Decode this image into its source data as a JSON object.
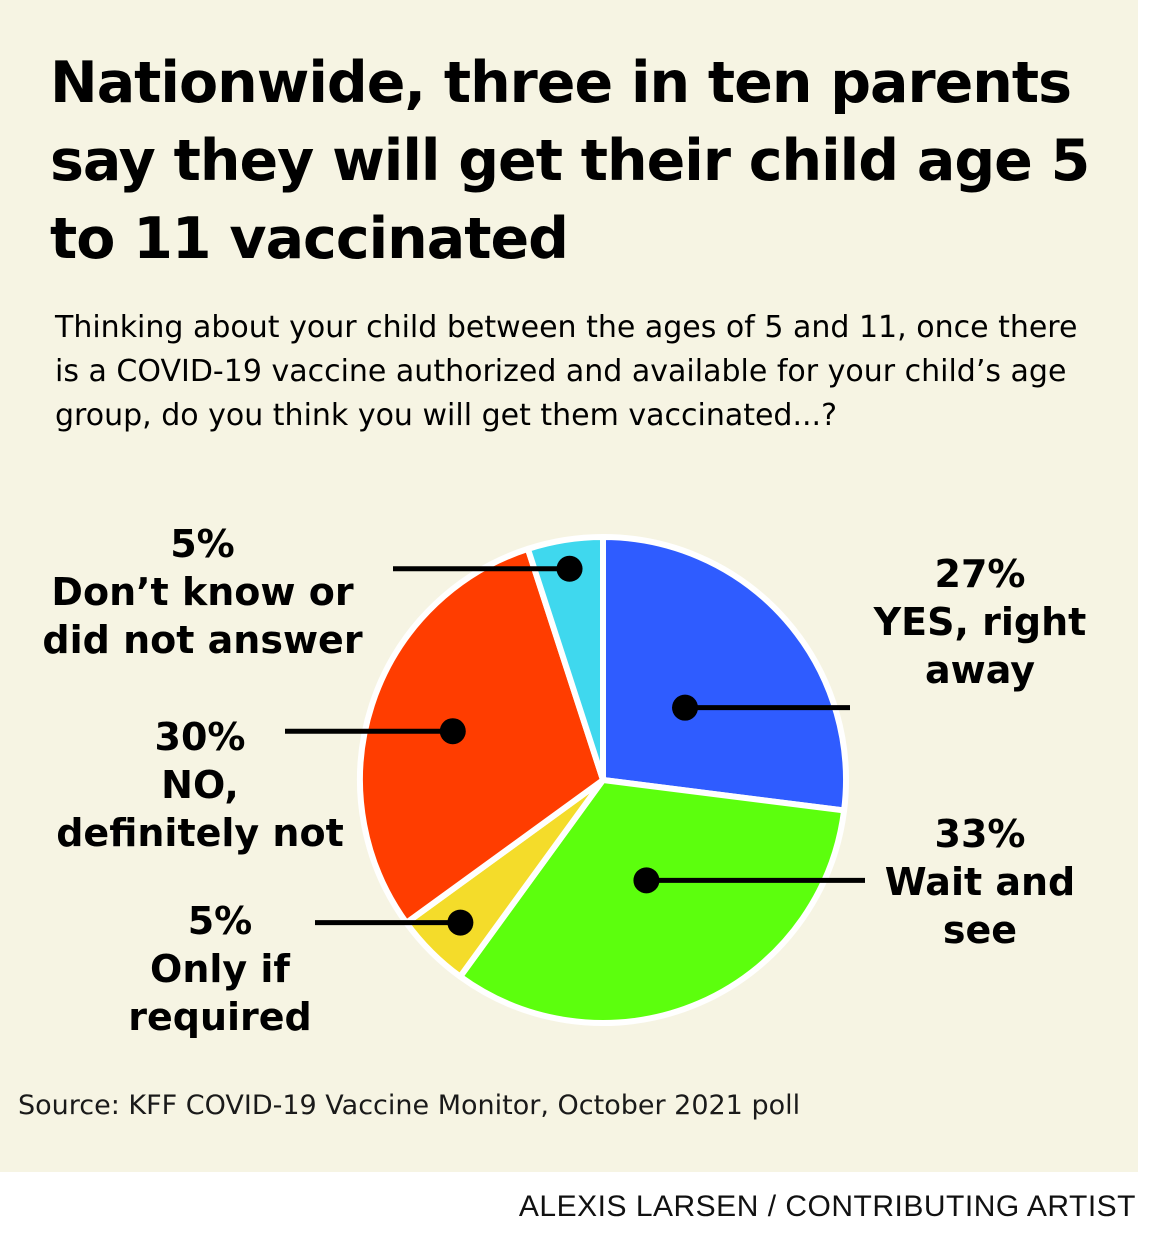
{
  "title": "Nationwide, three in ten parents say they will get their child age 5 to 11 vaccinated",
  "subtitle": "Thinking about your child between the ages of 5 and 11, once there is a COVID-19 vaccine authorized and available for your child’s age group, do you think you will get them vaccinated...?",
  "source": "Source: KFF COVID-19 Vaccine Monitor, October 2021 poll",
  "credit": "ALEXIS LARSEN / CONTRIBUTING ARTIST",
  "chart_data": {
    "type": "pie",
    "slices": [
      {
        "label": "YES, right away",
        "value": 27,
        "pct_label": "27%",
        "color": "#2f5cff"
      },
      {
        "label": "Wait and see",
        "value": 33,
        "pct_label": "33%",
        "color": "#5cff0d"
      },
      {
        "label": "Only if required",
        "value": 5,
        "pct_label": "5%",
        "color": "#f4dc2a"
      },
      {
        "label": "NO, definitely not",
        "value": 30,
        "pct_label": "30%",
        "color": "#ff3d00"
      },
      {
        "label": "Don’t know or did not answer",
        "value": 5,
        "pct_label": "5%",
        "color": "#3fd8ee"
      }
    ],
    "label_lines": {
      "yes": [
        "YES, right",
        "away"
      ],
      "wait": [
        "Wait and",
        "see"
      ],
      "only": [
        "Only if",
        "required"
      ],
      "no": [
        "NO,",
        "definitely not"
      ],
      "dk": [
        "Don’t know or",
        "did not answer"
      ]
    }
  }
}
